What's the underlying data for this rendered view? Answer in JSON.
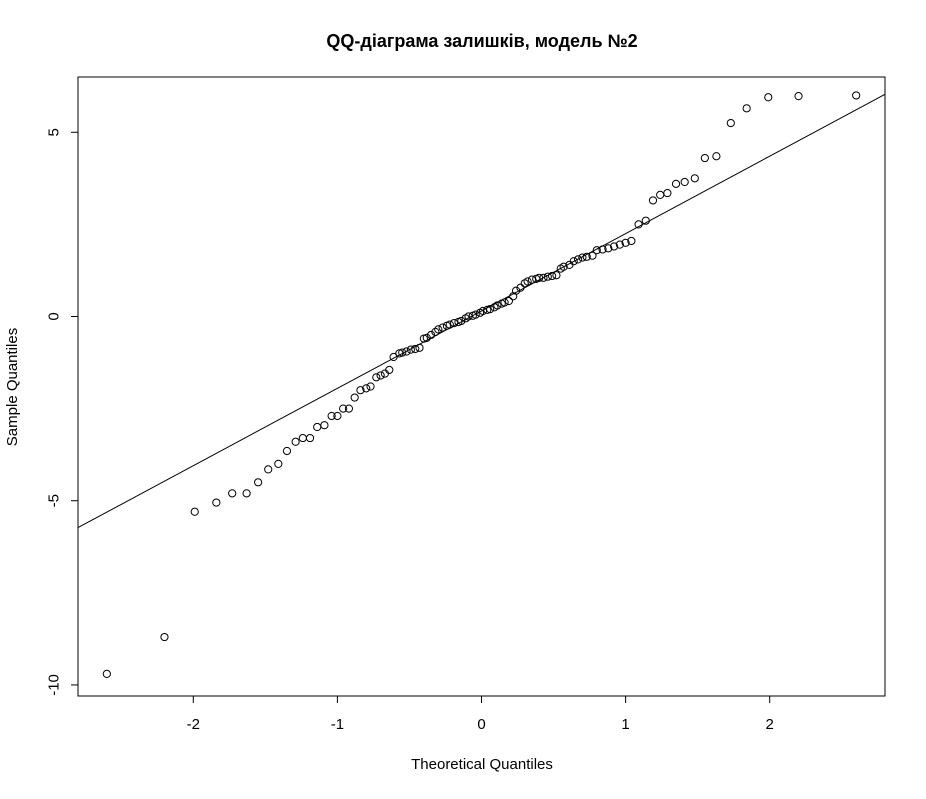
{
  "chart_data": {
    "type": "scatter",
    "title": "QQ-діаграма залишків, модель №2",
    "xlabel": "Theoretical Quantiles",
    "ylabel": "Sample Quantiles",
    "xlim": [
      -2.8,
      2.8
    ],
    "ylim": [
      -10.3,
      6.5
    ],
    "x_ticks": [
      -2,
      -1,
      0,
      1,
      2
    ],
    "x_tick_labels": [
      "-2",
      "-1",
      "0",
      "1",
      "2"
    ],
    "y_ticks": [
      -10,
      -5,
      0,
      5
    ],
    "y_tick_labels": [
      "-10",
      "-5",
      "0",
      "5"
    ],
    "grid": false,
    "legend": "none",
    "reference_line": {
      "slope": 2.1,
      "intercept": 0.15
    },
    "points": {
      "x": [
        -2.6,
        -2.2,
        -1.99,
        -1.84,
        -1.73,
        -1.63,
        -1.55,
        -1.48,
        -1.41,
        -1.35,
        -1.29,
        -1.24,
        -1.19,
        -1.14,
        -1.09,
        -1.04,
        -1.0,
        -0.96,
        -0.92,
        -0.88,
        -0.84,
        -0.8,
        -0.77,
        -0.73,
        -0.7,
        -0.67,
        -0.64,
        -0.61,
        -0.57,
        -0.55,
        -0.52,
        -0.49,
        -0.46,
        -0.43,
        -0.4,
        -0.38,
        -0.35,
        -0.32,
        -0.3,
        -0.27,
        -0.24,
        -0.22,
        -0.19,
        -0.16,
        -0.14,
        -0.11,
        -0.09,
        -0.06,
        -0.04,
        -0.01,
        0.01,
        0.04,
        0.06,
        0.09,
        0.11,
        0.14,
        0.16,
        0.19,
        0.22,
        0.24,
        0.27,
        0.3,
        0.32,
        0.35,
        0.38,
        0.4,
        0.43,
        0.46,
        0.49,
        0.52,
        0.55,
        0.57,
        0.61,
        0.64,
        0.67,
        0.7,
        0.73,
        0.77,
        0.8,
        0.84,
        0.88,
        0.92,
        0.96,
        1.0,
        1.04,
        1.09,
        1.14,
        1.19,
        1.24,
        1.29,
        1.35,
        1.41,
        1.48,
        1.55,
        1.63,
        1.73,
        1.84,
        1.99,
        2.2,
        2.6
      ],
      "y": [
        -9.7,
        -8.7,
        -5.3,
        -5.05,
        -4.8,
        -4.8,
        -4.5,
        -4.15,
        -4.0,
        -3.65,
        -3.4,
        -3.3,
        -3.3,
        -3.0,
        -2.95,
        -2.7,
        -2.7,
        -2.5,
        -2.5,
        -2.2,
        -2.0,
        -1.95,
        -1.9,
        -1.65,
        -1.6,
        -1.55,
        -1.45,
        -1.1,
        -1.0,
        -0.98,
        -0.95,
        -0.9,
        -0.88,
        -0.85,
        -0.6,
        -0.58,
        -0.5,
        -0.42,
        -0.35,
        -0.3,
        -0.25,
        -0.22,
        -0.18,
        -0.15,
        -0.12,
        -0.05,
        0.0,
        0.02,
        0.05,
        0.1,
        0.15,
        0.18,
        0.2,
        0.25,
        0.3,
        0.35,
        0.38,
        0.42,
        0.55,
        0.7,
        0.78,
        0.9,
        0.95,
        1.0,
        1.02,
        1.05,
        1.05,
        1.08,
        1.1,
        1.12,
        1.3,
        1.35,
        1.4,
        1.5,
        1.55,
        1.6,
        1.62,
        1.65,
        1.8,
        1.82,
        1.85,
        1.9,
        1.95,
        2.0,
        2.05,
        2.5,
        2.6,
        3.15,
        3.3,
        3.35,
        3.6,
        3.65,
        3.75,
        4.3,
        4.35,
        5.25,
        5.65,
        5.95,
        5.98,
        6.0
      ]
    }
  }
}
